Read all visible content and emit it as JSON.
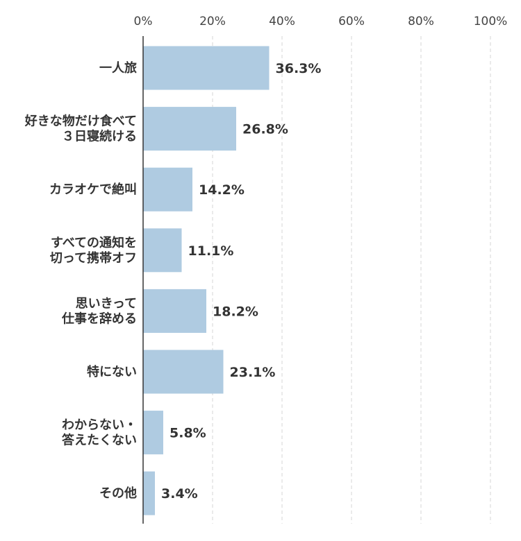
{
  "chart_data": {
    "type": "bar",
    "orientation": "horizontal",
    "categories": [
      [
        "一人旅"
      ],
      [
        "好きな物だけ食べて",
        "３日寝続ける"
      ],
      [
        "カラオケで絶叫"
      ],
      [
        "すべての通知を",
        "切って携帯オフ"
      ],
      [
        "思いきって",
        "仕事を辞める"
      ],
      [
        "特にない"
      ],
      [
        "わからない・",
        "答えたくない"
      ],
      [
        "その他"
      ]
    ],
    "values": [
      36.3,
      26.8,
      14.2,
      11.1,
      18.2,
      23.1,
      5.8,
      3.4
    ],
    "value_labels": [
      "36.3%",
      "26.8%",
      "14.2%",
      "11.1%",
      "18.2%",
      "23.1%",
      "5.8%",
      "3.4%"
    ],
    "xlim": [
      0,
      100
    ],
    "x_ticks": [
      0,
      20,
      40,
      60,
      80,
      100
    ],
    "x_tick_labels": [
      "0%",
      "20%",
      "40%",
      "60%",
      "80%",
      "100%"
    ],
    "x_axis_position": "top",
    "grid": true,
    "colors": {
      "bar": "#afcbe1",
      "grid": "#d4d4d4",
      "axis": "#333333",
      "text": "#333333"
    }
  }
}
